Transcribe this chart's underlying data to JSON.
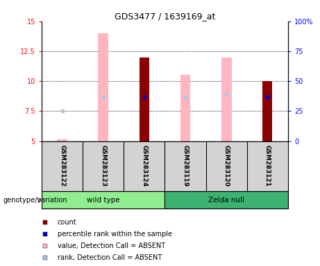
{
  "title": "GDS3477 / 1639169_at",
  "samples": [
    "GSM283122",
    "GSM283123",
    "GSM283124",
    "GSM283119",
    "GSM283120",
    "GSM283121"
  ],
  "ylim_left": [
    5,
    15
  ],
  "ylim_right": [
    0,
    100
  ],
  "yticks_left": [
    5,
    7.5,
    10,
    12.5,
    15
  ],
  "yticks_right": [
    0,
    25,
    50,
    75,
    100
  ],
  "ytick_labels_left": [
    "5",
    "7.5",
    "10",
    "12.5",
    "15"
  ],
  "ytick_labels_right": [
    "0",
    "25",
    "50",
    "75",
    "100%"
  ],
  "count_bars": {
    "GSM283124": 12.0,
    "GSM283121": 10.0
  },
  "rank_dots": {
    "GSM283124": 8.65,
    "GSM283121": 8.7
  },
  "absent_value_bars": {
    "GSM283122": 5.15,
    "GSM283123": 14.0,
    "GSM283119": 10.5,
    "GSM283120": 12.0
  },
  "absent_rank_dots": {
    "GSM283122": 7.5,
    "GSM283123": 8.7,
    "GSM283119": 8.65,
    "GSM283120": 8.9
  },
  "bar_bottom": 5.0,
  "count_color": "#8B0000",
  "rank_color": "#0000CD",
  "absent_value_color": "#FFB6C1",
  "absent_rank_color": "#B0C4DE",
  "legend_items": [
    {
      "label": "count",
      "color": "#8B0000"
    },
    {
      "label": "percentile rank within the sample",
      "color": "#0000CD"
    },
    {
      "label": "value, Detection Call = ABSENT",
      "color": "#FFB6C1"
    },
    {
      "label": "rank, Detection Call = ABSENT",
      "color": "#B0C4DE"
    }
  ],
  "group_spans": [
    {
      "label": "wild type",
      "start": 0,
      "end": 2,
      "color": "#90EE90"
    },
    {
      "label": "Zelda null",
      "start": 3,
      "end": 5,
      "color": "#3CB371"
    }
  ],
  "plot_bg_color": "#FFFFFF",
  "label_area_color": "#D3D3D3",
  "bar_width": 0.28
}
